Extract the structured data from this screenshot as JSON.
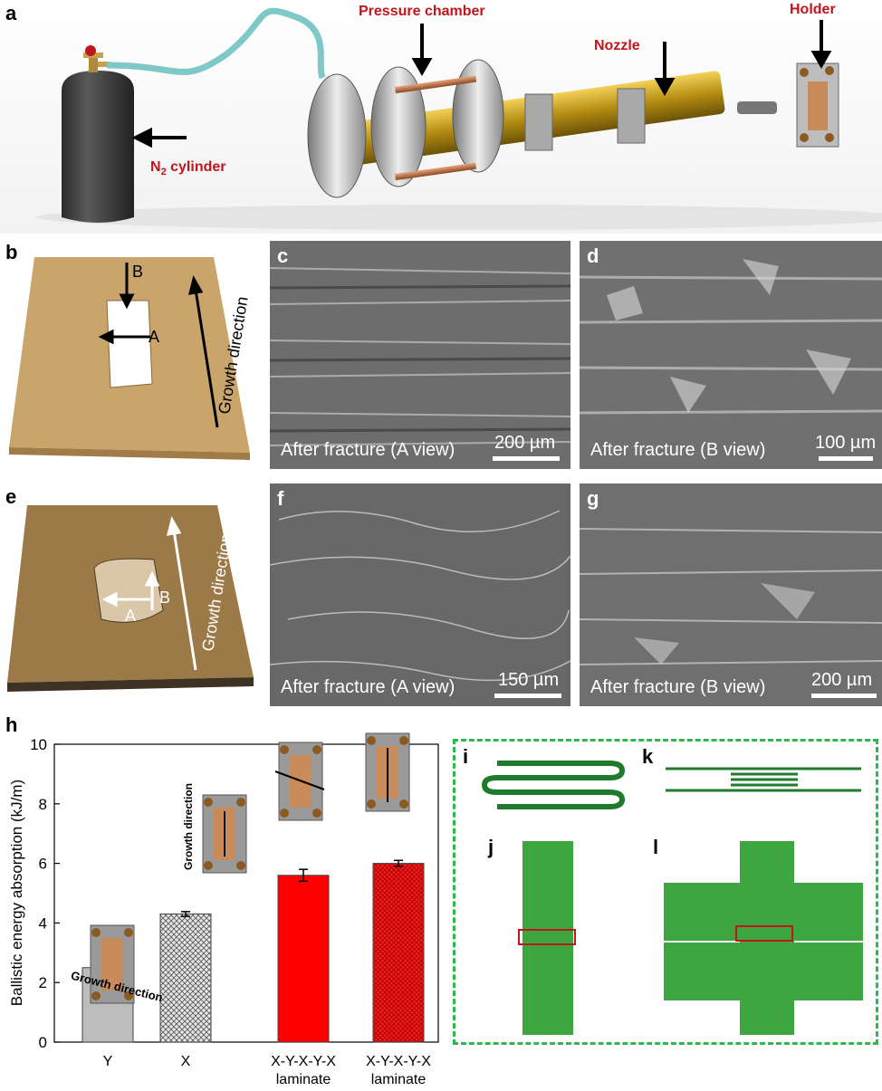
{
  "panels": {
    "a": "a",
    "b": "b",
    "c": "c",
    "d": "d",
    "e": "e",
    "f": "f",
    "g": "g",
    "h": "h",
    "i": "i",
    "j": "j",
    "k": "k",
    "l": "l"
  },
  "panel_a": {
    "pressure_chamber": "Pressure chamber",
    "holder": "Holder",
    "nozzle": "Nozzle",
    "cylinder_prefix": "N",
    "cylinder_sub": "2",
    "cylinder_suffix": " cylinder"
  },
  "panel_b": {
    "label_b": "B",
    "label_a": "A",
    "growth": "Growth direction"
  },
  "panel_e": {
    "label_b": "B",
    "label_a": "A",
    "growth": "Growth direction"
  },
  "sem": {
    "c": {
      "caption": "After fracture (A view)",
      "scale": "200 µm"
    },
    "d": {
      "caption": "After fracture (B view)",
      "scale": "100 µm"
    },
    "f": {
      "caption": "After fracture (A view)",
      "scale": "150 µm"
    },
    "g": {
      "caption": "After fracture (B view)",
      "scale": "200 µm"
    }
  },
  "inset_labels": {
    "growth_1": "Growth direction",
    "growth_2": "Growth direction"
  },
  "chart_data": {
    "type": "bar",
    "ylabel": "Ballistic energy absorption (kJ/m)",
    "ylim": [
      0,
      10
    ],
    "yticks": [
      "0",
      "2",
      "4",
      "6",
      "8",
      "10"
    ],
    "categories": [
      {
        "line1": "Y",
        "line2": ""
      },
      {
        "line1": "X",
        "line2": ""
      },
      {
        "line1": "X-Y-X-Y-X",
        "line2": "laminate"
      },
      {
        "line1": "X-Y-X-Y-X",
        "line2": "laminate"
      }
    ],
    "values": [
      2.5,
      4.3,
      5.6,
      6.0
    ],
    "errors": [
      0.1,
      0.08,
      0.2,
      0.1
    ],
    "colors": [
      "#bdbdbd",
      "#d0d0d0",
      "#ff0000",
      "#e8001c"
    ],
    "patterns": [
      "solid",
      "crosshatch",
      "solid",
      "crosshatch"
    ]
  }
}
